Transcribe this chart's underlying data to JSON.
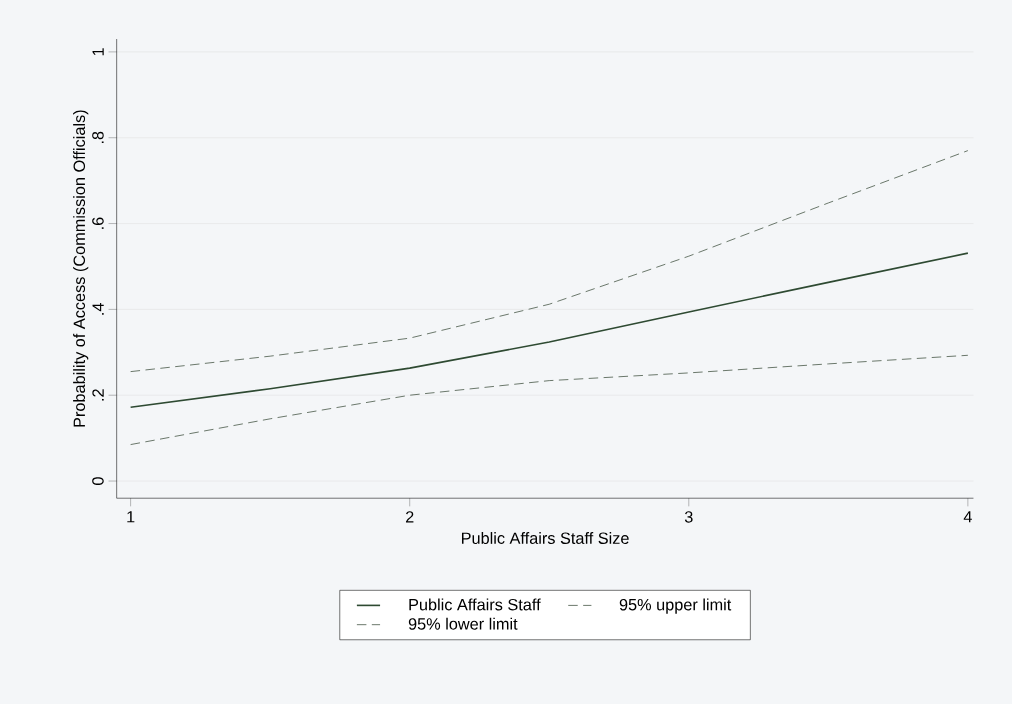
{
  "chart_data": {
    "type": "line",
    "xlabel": "Public Affairs Staff Size",
    "ylabel": "Probability of Access (Commission Officials)",
    "x": [
      1,
      1.5,
      2,
      2.5,
      3,
      3.5,
      4
    ],
    "series": [
      {
        "name": "Public Affairs Staff",
        "color": "#2e4a32",
        "line_style": "solid",
        "values": [
          0.172,
          0.215,
          0.263,
          0.324,
          0.394,
          0.463,
          0.531
        ]
      },
      {
        "name": "95% upper limit",
        "color": "#4a5a4a",
        "line_style": "dashed",
        "values": [
          0.255,
          0.291,
          0.333,
          0.412,
          0.524,
          0.648,
          0.77
        ]
      },
      {
        "name": "95% lower limit",
        "color": "#4a5a4a",
        "line_style": "dashed",
        "values": [
          0.085,
          0.145,
          0.2,
          0.234,
          0.252,
          0.273,
          0.293
        ]
      }
    ],
    "xlim": [
      0.95,
      4.02
    ],
    "ylim": [
      -0.04,
      1.03
    ],
    "xticks": [
      1,
      2,
      3,
      4
    ],
    "yticks": [
      0,
      {
        "value": 0.2,
        "label": ".2"
      },
      {
        "value": 0.4,
        "label": ".4"
      },
      {
        "value": 0.6,
        "label": ".6"
      },
      {
        "value": 0.8,
        "label": ".8"
      },
      1
    ],
    "grid": "y",
    "legend": "bottom",
    "marker": "none"
  }
}
